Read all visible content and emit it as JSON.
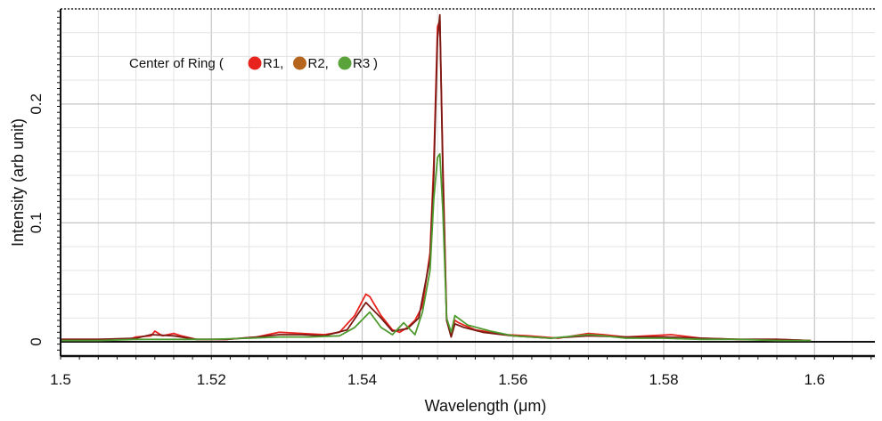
{
  "chart_data": {
    "type": "line",
    "title": "",
    "xlabel": "Wavelength (μm)",
    "ylabel": "Intensity (arb unit)",
    "xlim": [
      1.5,
      1.608
    ],
    "ylim": [
      -0.012,
      0.28
    ],
    "x_ticks": [
      1.5,
      1.52,
      1.54,
      1.56,
      1.58,
      1.6
    ],
    "x_tick_labels": [
      "1.5",
      "1.52",
      "1.54",
      "1.56",
      "1.58",
      "1.6"
    ],
    "y_ticks": [
      0,
      0.1,
      0.2
    ],
    "y_tick_labels": [
      "0",
      "0.1",
      "0.2"
    ],
    "grid": true,
    "legend": {
      "placement": "top-left",
      "prefix": "Center of Ring (",
      "suffix": ")",
      "entries": [
        {
          "label": "R1,",
          "color": "#e8231e"
        },
        {
          "label": "R2,",
          "color": "#b5651d"
        },
        {
          "label": "R3",
          "color": "#5aa33a"
        }
      ]
    },
    "series": [
      {
        "color": "#e8231e",
        "x": [
          1.5,
          1.505,
          1.509,
          1.51,
          1.512,
          1.5125,
          1.5135,
          1.515,
          1.516,
          1.518,
          1.522,
          1.526,
          1.529,
          1.532,
          1.535,
          1.537,
          1.539,
          1.5405,
          1.541,
          1.5425,
          1.544,
          1.545,
          1.546,
          1.547,
          1.548,
          1.549,
          1.5495,
          1.55,
          1.5503,
          1.5507,
          1.5512,
          1.5518,
          1.5523,
          1.5528,
          1.5535,
          1.555,
          1.557,
          1.559,
          1.562,
          1.566,
          1.57,
          1.572,
          1.575,
          1.578,
          1.581,
          1.585,
          1.59,
          1.595,
          1.5995
        ],
        "y": [
          0.002,
          0.002,
          0.002,
          0.004,
          0.005,
          0.009,
          0.005,
          0.007,
          0.005,
          0.002,
          0.002,
          0.004,
          0.008,
          0.007,
          0.006,
          0.008,
          0.022,
          0.04,
          0.038,
          0.022,
          0.01,
          0.008,
          0.012,
          0.018,
          0.03,
          0.075,
          0.15,
          0.265,
          0.27,
          0.15,
          0.02,
          0.005,
          0.018,
          0.016,
          0.014,
          0.01,
          0.008,
          0.006,
          0.005,
          0.003,
          0.007,
          0.006,
          0.004,
          0.005,
          0.006,
          0.003,
          0.002,
          0.002,
          0.001
        ]
      },
      {
        "color": "#7a1a14",
        "x": [
          1.5,
          1.505,
          1.51,
          1.512,
          1.515,
          1.518,
          1.522,
          1.526,
          1.529,
          1.532,
          1.535,
          1.538,
          1.5405,
          1.5425,
          1.544,
          1.546,
          1.5475,
          1.549,
          1.5495,
          1.55,
          1.5503,
          1.5507,
          1.5512,
          1.5518,
          1.5523,
          1.5535,
          1.556,
          1.56,
          1.565,
          1.57,
          1.575,
          1.58,
          1.585,
          1.59,
          1.595,
          1.5995
        ],
        "y": [
          0.002,
          0.002,
          0.003,
          0.006,
          0.005,
          0.002,
          0.002,
          0.004,
          0.006,
          0.006,
          0.005,
          0.01,
          0.033,
          0.02,
          0.009,
          0.011,
          0.02,
          0.07,
          0.14,
          0.255,
          0.275,
          0.14,
          0.018,
          0.004,
          0.015,
          0.012,
          0.008,
          0.005,
          0.003,
          0.005,
          0.004,
          0.004,
          0.003,
          0.002,
          0.002,
          0.001
        ]
      },
      {
        "color": "#4e9a2e",
        "x": [
          1.5,
          1.505,
          1.51,
          1.515,
          1.52,
          1.525,
          1.529,
          1.533,
          1.537,
          1.539,
          1.541,
          1.5425,
          1.544,
          1.5455,
          1.547,
          1.548,
          1.549,
          1.5495,
          1.55,
          1.5503,
          1.5507,
          1.5512,
          1.5518,
          1.5523,
          1.554,
          1.557,
          1.56,
          1.565,
          1.57,
          1.572,
          1.575,
          1.58,
          1.585,
          1.59,
          1.595,
          1.5995
        ],
        "y": [
          0.001,
          0.001,
          0.002,
          0.002,
          0.002,
          0.003,
          0.004,
          0.004,
          0.005,
          0.012,
          0.025,
          0.012,
          0.006,
          0.016,
          0.006,
          0.025,
          0.06,
          0.12,
          0.155,
          0.158,
          0.11,
          0.02,
          0.008,
          0.022,
          0.014,
          0.009,
          0.005,
          0.003,
          0.006,
          0.005,
          0.003,
          0.003,
          0.002,
          0.002,
          0.001,
          0.001
        ]
      }
    ]
  }
}
